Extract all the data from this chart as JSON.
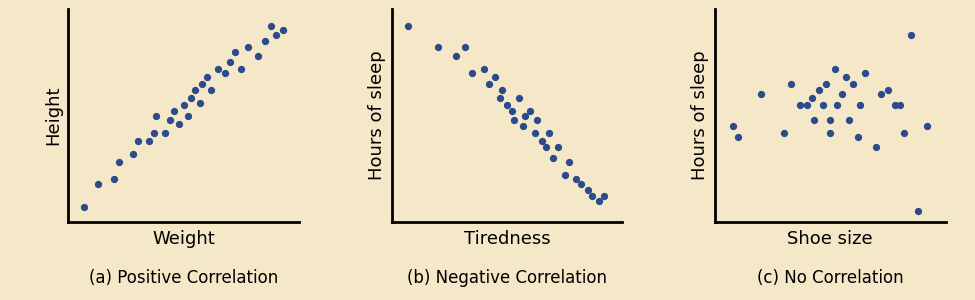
{
  "background_color": "#f5e8c8",
  "dot_color": "#2b4b8c",
  "dot_size": 18,
  "plots": [
    {
      "xlabel": "Weight",
      "ylabel": "Height",
      "caption": "(a) Positive Correlation",
      "x": [
        0.07,
        0.13,
        0.2,
        0.22,
        0.28,
        0.3,
        0.35,
        0.37,
        0.38,
        0.42,
        0.44,
        0.46,
        0.48,
        0.5,
        0.52,
        0.53,
        0.55,
        0.57,
        0.58,
        0.6,
        0.62,
        0.65,
        0.68,
        0.7,
        0.72,
        0.75,
        0.78,
        0.82,
        0.85,
        0.88,
        0.9,
        0.93
      ],
      "y": [
        0.07,
        0.18,
        0.2,
        0.28,
        0.32,
        0.38,
        0.38,
        0.42,
        0.5,
        0.42,
        0.48,
        0.52,
        0.46,
        0.55,
        0.5,
        0.58,
        0.62,
        0.56,
        0.65,
        0.68,
        0.62,
        0.72,
        0.7,
        0.75,
        0.8,
        0.72,
        0.82,
        0.78,
        0.85,
        0.92,
        0.88,
        0.9
      ]
    },
    {
      "xlabel": "Tiredness",
      "ylabel": "Hours of sleep",
      "caption": "(b) Negative Correlation",
      "x": [
        0.07,
        0.2,
        0.28,
        0.32,
        0.35,
        0.4,
        0.42,
        0.45,
        0.47,
        0.48,
        0.5,
        0.52,
        0.53,
        0.55,
        0.57,
        0.58,
        0.6,
        0.62,
        0.63,
        0.65,
        0.67,
        0.68,
        0.7,
        0.72,
        0.75,
        0.77,
        0.8,
        0.82,
        0.85,
        0.87,
        0.9,
        0.92
      ],
      "y": [
        0.92,
        0.82,
        0.78,
        0.82,
        0.7,
        0.72,
        0.65,
        0.68,
        0.58,
        0.62,
        0.55,
        0.52,
        0.48,
        0.58,
        0.45,
        0.5,
        0.52,
        0.42,
        0.48,
        0.38,
        0.35,
        0.42,
        0.3,
        0.35,
        0.22,
        0.28,
        0.2,
        0.18,
        0.15,
        0.12,
        0.1,
        0.12
      ]
    },
    {
      "xlabel": "Shoe size",
      "ylabel": "Hours of sleep",
      "caption": "(c) No Correlation",
      "x": [
        0.08,
        0.1,
        0.2,
        0.3,
        0.33,
        0.37,
        0.4,
        0.42,
        0.43,
        0.45,
        0.47,
        0.48,
        0.5,
        0.5,
        0.52,
        0.53,
        0.55,
        0.57,
        0.58,
        0.6,
        0.62,
        0.63,
        0.65,
        0.7,
        0.72,
        0.75,
        0.78,
        0.8,
        0.82,
        0.85,
        0.88,
        0.92
      ],
      "y": [
        0.45,
        0.4,
        0.6,
        0.42,
        0.65,
        0.55,
        0.55,
        0.58,
        0.48,
        0.62,
        0.55,
        0.65,
        0.42,
        0.48,
        0.72,
        0.55,
        0.6,
        0.68,
        0.48,
        0.65,
        0.4,
        0.55,
        0.7,
        0.35,
        0.6,
        0.62,
        0.55,
        0.55,
        0.42,
        0.88,
        0.05,
        0.45
      ]
    }
  ],
  "caption_fontsize": 12,
  "axis_label_fontsize": 13,
  "fig_background": "#f5e8c8"
}
